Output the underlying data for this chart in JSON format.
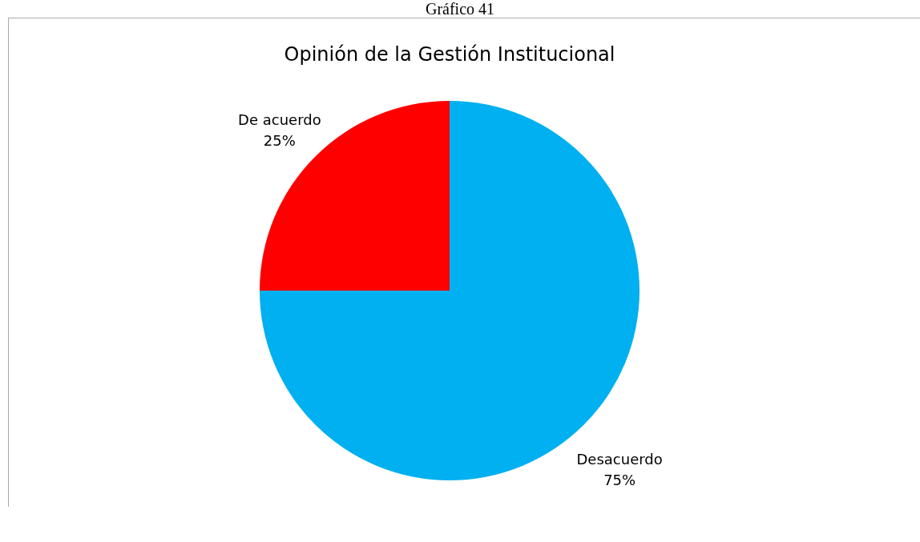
{
  "chart_data": {
    "type": "pie",
    "title": "Opinión de la Gestión Institucional",
    "annotations": [
      "Gráfico 41"
    ],
    "categories": [
      "Desacuerdo",
      "De acuerdo"
    ],
    "values": [
      75,
      25
    ],
    "colors": [
      "#00b0f0",
      "#ff0000"
    ],
    "value_labels": [
      "75%",
      "25%"
    ],
    "legend": false
  }
}
